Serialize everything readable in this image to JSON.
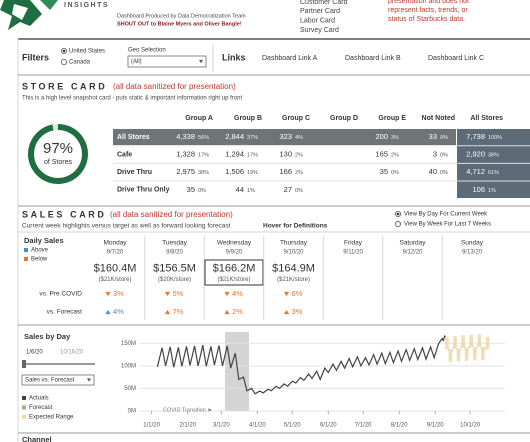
{
  "header": {
    "logo_text": "INSIGHTS",
    "credit": "Dashboard Produced by Data Democratization Team",
    "shout_out": "SHOUT OUT to Blaine Myers and Oliver Bangle!",
    "cards": [
      "Customer Card",
      "Partner Card",
      "Labor Card",
      "Survey Card"
    ],
    "disclaimer": [
      "presentation and does not",
      "represent facts, trends, or",
      "status of Starbucks data."
    ]
  },
  "filters": {
    "title": "Filters",
    "geo_options": [
      "United States",
      "Canada"
    ],
    "selected": 0,
    "geo_label": "Geo Selection",
    "geo_value": "(All)"
  },
  "links": {
    "title": "Links",
    "items": [
      "Dashboard Link A",
      "Dashboard Link B",
      "Dashboard Link C"
    ]
  },
  "store_card": {
    "title": "STORE CARD",
    "note": "(all data sanitized for presentation)",
    "subtitle": "This is a high level snapshot card - puts static & important information right up front",
    "kpi": {
      "value": 97,
      "label": "97%",
      "caption": "of Stores",
      "color": "#1e6e42"
    },
    "table": {
      "columns": [
        "Group A",
        "Group B",
        "Group C",
        "Group D",
        "Group E",
        "Not Noted",
        "All Stores"
      ],
      "rows": [
        {
          "label": "All Stores",
          "cells": [
            [
              "4,338",
              "56%"
            ],
            [
              "2,844",
              "37%"
            ],
            [
              "323",
              "4%"
            ],
            null,
            [
              "200",
              "3%"
            ],
            [
              "33",
              "0%"
            ],
            [
              "7,738",
              "100%"
            ]
          ]
        },
        {
          "label": "Cafe",
          "cells": [
            [
              "1,328",
              "17%"
            ],
            [
              "1,294",
              "17%"
            ],
            [
              "130",
              "2%"
            ],
            null,
            [
              "165",
              "2%"
            ],
            [
              "3",
              "0%"
            ],
            [
              "2,920",
              "38%"
            ]
          ]
        },
        {
          "label": "Drive Thru",
          "cells": [
            [
              "2,975",
              "38%"
            ],
            [
              "1,506",
              "19%"
            ],
            [
              "166",
              "2%"
            ],
            null,
            [
              "35",
              "0%"
            ],
            [
              "40",
              "0%"
            ],
            [
              "4,712",
              "61%"
            ]
          ]
        },
        {
          "label": "Drive Thru Only",
          "cells": [
            [
              "35",
              "0%"
            ],
            [
              "44",
              "1%"
            ],
            [
              "27",
              "0%"
            ],
            null,
            null,
            null,
            [
              "106",
              "1%"
            ]
          ]
        }
      ]
    }
  },
  "sales_card": {
    "title": "SALES CARD",
    "note": "(all data sanitized for presentation)",
    "subtitle": "Current week highlights versus target as well as forward looking forecast",
    "hover": "Hover for Definitions",
    "view_options": [
      "View By Day For Current Week",
      "View By Week For Last 7 Weeks"
    ],
    "selected": 0
  },
  "daily_sales": {
    "title": "Daily Sales",
    "legend": [
      {
        "name": "Above",
        "color": "#4a8fca"
      },
      {
        "name": "Below",
        "color": "#e8762d"
      }
    ],
    "row_labels": [
      "vs. Pre COVID",
      "vs. Forecast"
    ],
    "selected_day": 2,
    "days": [
      {
        "day": "Monday",
        "date": "9/7/20",
        "sales": "$160.4M",
        "per_store": "($21K/store)",
        "pre_covid": {
          "text": "3%",
          "dir": "down",
          "status": 1
        },
        "forecast": {
          "text": "4%",
          "dir": "up",
          "status": 0
        }
      },
      {
        "day": "Tuesday",
        "date": "9/8/20",
        "sales": "$156.5M",
        "per_store": "($20K/store)",
        "pre_covid": {
          "text": "5%",
          "dir": "down",
          "status": 1
        },
        "forecast": {
          "text": "7%",
          "dir": "up",
          "status": 1
        }
      },
      {
        "day": "Wednesday",
        "date": "9/9/20",
        "sales": "$166.2M",
        "per_store": "($21K/store)",
        "pre_covid": {
          "text": "4%",
          "dir": "down",
          "status": 1
        },
        "forecast": {
          "text": "2%",
          "dir": "up",
          "status": 1
        }
      },
      {
        "day": "Thursday",
        "date": "9/10/20",
        "sales": "$164.9M",
        "per_store": "($21K/store)",
        "pre_covid": {
          "text": "6%",
          "dir": "down",
          "status": 1
        },
        "forecast": {
          "text": "3%",
          "dir": "up",
          "status": 1
        }
      },
      {
        "day": "Friday",
        "date": "9/11/20"
      },
      {
        "day": "Saturday",
        "date": "9/12/20"
      },
      {
        "day": "Sunday",
        "date": "9/13/20"
      }
    ]
  },
  "chart_data": {
    "type": "line",
    "title": "Sales by Day",
    "date_range": [
      "1/6/20",
      "10/16/20"
    ],
    "measure": "Sales vs. Forecast",
    "annotation": "COVID Transition ►",
    "xlim": [
      "12/22/19",
      "10/31/20"
    ],
    "xticks": [
      "1/1/20",
      "2/1/20",
      "3/1/20",
      "4/1/20",
      "5/1/20",
      "6/1/20",
      "7/1/20",
      "8/1/20",
      "9/1/20",
      "10/1/20"
    ],
    "ylim": [
      0,
      175
    ],
    "yticks": [
      {
        "value": 0,
        "label": "0M"
      },
      {
        "value": 50,
        "label": "50M"
      },
      {
        "value": 100,
        "label": "100M"
      },
      {
        "value": 150,
        "label": "150M"
      }
    ],
    "grid": true,
    "series": [
      {
        "name": "Actuals",
        "color": "#444444",
        "x": [
          "1/6/20",
          "1/10/20",
          "1/13/20",
          "1/17/20",
          "1/20/20",
          "1/24/20",
          "1/27/20",
          "1/31/20",
          "2/3/20",
          "2/7/20",
          "2/10/20",
          "2/14/20",
          "2/17/20",
          "2/21/20",
          "2/24/20",
          "2/28/20",
          "3/2/20",
          "3/6/20",
          "3/9/20",
          "3/13/20",
          "3/16/20",
          "3/20/20",
          "3/23/20",
          "3/27/20",
          "3/30/20",
          "4/3/20",
          "4/6/20",
          "4/10/20",
          "4/13/20",
          "4/17/20",
          "4/20/20",
          "4/24/20",
          "4/27/20",
          "5/1/20",
          "5/4/20",
          "5/8/20",
          "5/11/20",
          "5/15/20",
          "5/18/20",
          "5/22/20",
          "5/25/20",
          "5/29/20",
          "6/1/20",
          "6/5/20",
          "6/8/20",
          "6/12/20",
          "6/15/20",
          "6/19/20",
          "6/22/20",
          "6/26/20",
          "6/29/20",
          "7/3/20",
          "7/6/20",
          "7/10/20",
          "7/13/20",
          "7/17/20",
          "7/20/20",
          "7/24/20",
          "7/27/20",
          "7/31/20",
          "8/3/20",
          "8/7/20",
          "8/10/20",
          "8/14/20",
          "8/17/20",
          "8/21/20",
          "8/24/20",
          "8/28/20",
          "8/31/20",
          "9/4/20",
          "9/7/20",
          "9/8/20",
          "9/9/20",
          "9/10/20"
        ],
        "values": [
          98,
          140,
          100,
          142,
          97,
          141,
          99,
          143,
          101,
          144,
          100,
          146,
          99,
          143,
          102,
          145,
          100,
          144,
          95,
          128,
          70,
          75,
          45,
          50,
          38,
          44,
          40,
          48,
          45,
          55,
          50,
          60,
          55,
          66,
          62,
          74,
          68,
          82,
          72,
          88,
          70,
          95,
          85,
          104,
          90,
          110,
          95,
          116,
          98,
          120,
          100,
          118,
          102,
          125,
          104,
          128,
          105,
          130,
          107,
          133,
          110,
          136,
          112,
          138,
          114,
          140,
          115,
          142,
          118,
          150,
          160.4,
          156.5,
          166.2,
          164.9
        ]
      },
      {
        "name": "Forecast",
        "color": "#b8a878",
        "x": [
          "9/11/20",
          "9/14/20",
          "9/18/20",
          "9/21/20",
          "9/25/20",
          "9/28/20",
          "10/2/20",
          "10/5/20",
          "10/9/20",
          "10/12/20",
          "10/16/20"
        ],
        "values": [
          150,
          122,
          152,
          124,
          154,
          125,
          155,
          126,
          156,
          127,
          150
        ]
      },
      {
        "name": "Expected Range",
        "color": "#f0d9a8",
        "x": [
          "9/11/20",
          "9/14/20",
          "9/18/20",
          "9/21/20",
          "9/25/20",
          "9/28/20",
          "10/2/20",
          "10/5/20",
          "10/9/20",
          "10/12/20",
          "10/16/20"
        ],
        "low": [
          136,
          108,
          138,
          110,
          140,
          111,
          141,
          112,
          142,
          113,
          136
        ],
        "high": [
          164,
          136,
          166,
          138,
          168,
          139,
          169,
          140,
          170,
          141,
          164
        ]
      }
    ]
  },
  "channel_card": {
    "title": "Channel"
  }
}
